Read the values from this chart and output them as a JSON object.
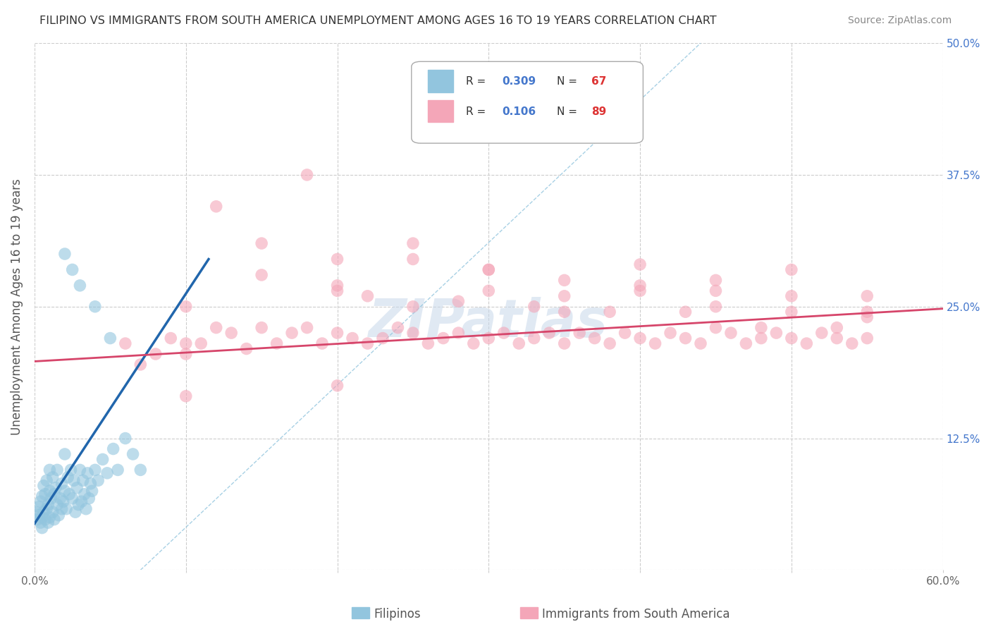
{
  "title": "FILIPINO VS IMMIGRANTS FROM SOUTH AMERICA UNEMPLOYMENT AMONG AGES 16 TO 19 YEARS CORRELATION CHART",
  "source": "Source: ZipAtlas.com",
  "ylabel": "Unemployment Among Ages 16 to 19 years",
  "xlim": [
    0.0,
    0.6
  ],
  "ylim": [
    0.0,
    0.5
  ],
  "xticks": [
    0.0,
    0.1,
    0.2,
    0.3,
    0.4,
    0.5,
    0.6
  ],
  "xticklabels": [
    "0.0%",
    "",
    "",
    "",
    "",
    "",
    "60.0%"
  ],
  "yticks": [
    0.0,
    0.125,
    0.25,
    0.375,
    0.5
  ],
  "yticklabels_left": [
    "",
    "",
    "",
    "",
    ""
  ],
  "yticklabels_right": [
    "",
    "12.5%",
    "25.0%",
    "37.5%",
    "50.0%"
  ],
  "legend_labels_bottom": [
    "Filipinos",
    "Immigrants from South America"
  ],
  "r_filipino": 0.309,
  "n_filipino": 67,
  "r_sa": 0.106,
  "n_sa": 89,
  "blue_dot_color": "#92c5de",
  "pink_dot_color": "#f4a6b8",
  "blue_line_color": "#2166ac",
  "pink_line_color": "#d6456a",
  "dashed_line_color": "#92c5de",
  "watermark": "ZIPatlas",
  "background_color": "#ffffff",
  "grid_color": "#cccccc",
  "title_color": "#333333",
  "right_tick_color": "#4477cc",
  "legend_r_color": "#4477cc",
  "legend_n_color": "#dd3333",
  "fil_line_x": [
    0.0,
    0.115
  ],
  "fil_line_y": [
    0.044,
    0.295
  ],
  "sa_line_x": [
    0.0,
    0.6
  ],
  "sa_line_y": [
    0.198,
    0.248
  ],
  "dash_line_x": [
    0.07,
    0.44
  ],
  "dash_line_y": [
    0.0,
    0.5
  ],
  "filipino_x": [
    0.001,
    0.002,
    0.003,
    0.003,
    0.004,
    0.004,
    0.005,
    0.005,
    0.005,
    0.006,
    0.006,
    0.007,
    0.007,
    0.008,
    0.008,
    0.009,
    0.009,
    0.01,
    0.01,
    0.01,
    0.011,
    0.012,
    0.012,
    0.013,
    0.013,
    0.014,
    0.015,
    0.015,
    0.016,
    0.017,
    0.018,
    0.018,
    0.019,
    0.02,
    0.02,
    0.021,
    0.022,
    0.023,
    0.024,
    0.025,
    0.026,
    0.027,
    0.028,
    0.029,
    0.03,
    0.031,
    0.032,
    0.033,
    0.034,
    0.035,
    0.036,
    0.037,
    0.038,
    0.04,
    0.042,
    0.045,
    0.048,
    0.052,
    0.055,
    0.06,
    0.065,
    0.07,
    0.02,
    0.025,
    0.03,
    0.04,
    0.05
  ],
  "filipino_y": [
    0.055,
    0.048,
    0.052,
    0.06,
    0.045,
    0.065,
    0.05,
    0.07,
    0.04,
    0.055,
    0.08,
    0.048,
    0.072,
    0.058,
    0.085,
    0.062,
    0.045,
    0.05,
    0.075,
    0.095,
    0.068,
    0.055,
    0.088,
    0.048,
    0.072,
    0.078,
    0.062,
    0.095,
    0.052,
    0.068,
    0.058,
    0.082,
    0.065,
    0.075,
    0.11,
    0.058,
    0.088,
    0.072,
    0.095,
    0.068,
    0.085,
    0.055,
    0.078,
    0.062,
    0.095,
    0.065,
    0.085,
    0.072,
    0.058,
    0.092,
    0.068,
    0.082,
    0.075,
    0.095,
    0.085,
    0.105,
    0.092,
    0.115,
    0.095,
    0.125,
    0.11,
    0.095,
    0.3,
    0.285,
    0.27,
    0.25,
    0.22
  ],
  "sa_x": [
    0.06,
    0.07,
    0.08,
    0.09,
    0.1,
    0.1,
    0.11,
    0.12,
    0.13,
    0.14,
    0.15,
    0.16,
    0.17,
    0.18,
    0.19,
    0.2,
    0.21,
    0.22,
    0.23,
    0.24,
    0.25,
    0.26,
    0.27,
    0.28,
    0.29,
    0.3,
    0.31,
    0.32,
    0.33,
    0.34,
    0.35,
    0.36,
    0.37,
    0.38,
    0.39,
    0.4,
    0.41,
    0.42,
    0.43,
    0.44,
    0.45,
    0.46,
    0.47,
    0.48,
    0.49,
    0.5,
    0.51,
    0.52,
    0.53,
    0.54,
    0.55,
    0.12,
    0.15,
    0.18,
    0.2,
    0.22,
    0.25,
    0.28,
    0.3,
    0.33,
    0.35,
    0.38,
    0.4,
    0.43,
    0.45,
    0.48,
    0.5,
    0.53,
    0.55,
    0.1,
    0.15,
    0.2,
    0.25,
    0.3,
    0.35,
    0.4,
    0.45,
    0.5,
    0.55,
    0.2,
    0.25,
    0.3,
    0.35,
    0.4,
    0.45,
    0.5,
    0.55,
    0.1,
    0.2
  ],
  "sa_y": [
    0.215,
    0.195,
    0.205,
    0.22,
    0.215,
    0.205,
    0.215,
    0.23,
    0.225,
    0.21,
    0.23,
    0.215,
    0.225,
    0.23,
    0.215,
    0.225,
    0.22,
    0.215,
    0.22,
    0.23,
    0.225,
    0.215,
    0.22,
    0.225,
    0.215,
    0.22,
    0.225,
    0.215,
    0.22,
    0.225,
    0.215,
    0.225,
    0.22,
    0.215,
    0.225,
    0.22,
    0.215,
    0.225,
    0.22,
    0.215,
    0.23,
    0.225,
    0.215,
    0.22,
    0.225,
    0.22,
    0.215,
    0.225,
    0.22,
    0.215,
    0.22,
    0.345,
    0.31,
    0.375,
    0.295,
    0.26,
    0.31,
    0.255,
    0.285,
    0.25,
    0.275,
    0.245,
    0.27,
    0.245,
    0.265,
    0.23,
    0.245,
    0.23,
    0.245,
    0.25,
    0.28,
    0.265,
    0.295,
    0.285,
    0.26,
    0.29,
    0.275,
    0.285,
    0.26,
    0.27,
    0.25,
    0.265,
    0.245,
    0.265,
    0.25,
    0.26,
    0.24,
    0.165,
    0.175
  ]
}
